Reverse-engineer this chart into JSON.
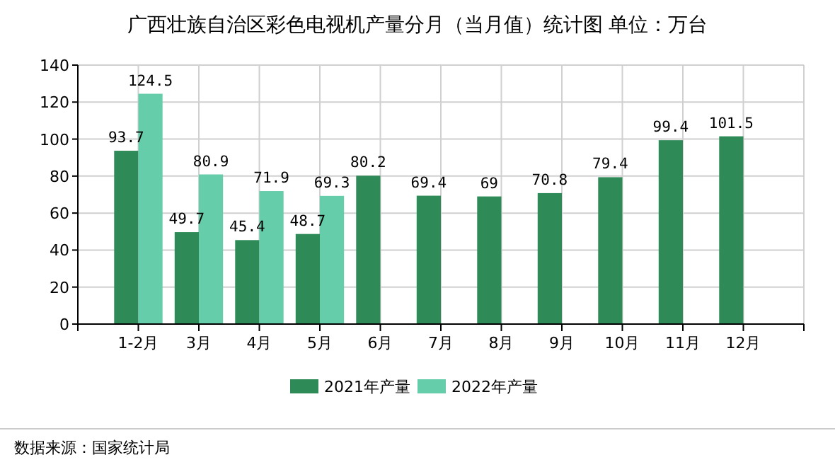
{
  "chart_data": {
    "type": "bar",
    "title": "广西壮族自治区彩色电视机产量分月（当月值）统计图 单位：万台",
    "categories": [
      "1-2月",
      "3月",
      "4月",
      "5月",
      "6月",
      "7月",
      "8月",
      "9月",
      "10月",
      "11月",
      "12月"
    ],
    "series": [
      {
        "name": "2021年产量",
        "color": "#2e8b57",
        "values": [
          93.7,
          49.7,
          45.4,
          48.7,
          80.2,
          69.4,
          69,
          70.8,
          79.4,
          99.4,
          101.5
        ]
      },
      {
        "name": "2022年产量",
        "color": "#66cdaa",
        "values": [
          124.5,
          80.9,
          71.9,
          69.3,
          null,
          null,
          null,
          null,
          null,
          null,
          null
        ]
      }
    ],
    "ylim": [
      0,
      140
    ],
    "yticks": [
      0,
      20,
      40,
      60,
      80,
      100,
      120,
      140
    ],
    "grid": true,
    "legend": "bottom",
    "data_labels": true,
    "annotations": [
      "数据来源：国家统计局"
    ]
  }
}
